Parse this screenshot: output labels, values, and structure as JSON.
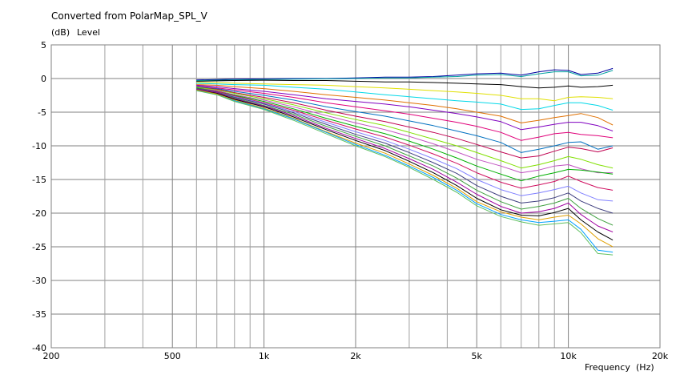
{
  "chart_data": {
    "type": "line",
    "title": "Converted from PolarMap_SPL_V",
    "ylabel_unit": "(dB)",
    "ylabel": "Level",
    "xlabel": "Frequency",
    "xlabel_unit": "(Hz)",
    "x_scale": "log",
    "xlim": [
      200,
      20000
    ],
    "ylim": [
      -40,
      5
    ],
    "grid": true,
    "legend": "none",
    "x_tick_labels": [
      {
        "value": 200,
        "label": "200"
      },
      {
        "value": 500,
        "label": "500"
      },
      {
        "value": 1000,
        "label": "1k"
      },
      {
        "value": 2000,
        "label": "2k"
      },
      {
        "value": 5000,
        "label": "5k"
      },
      {
        "value": 10000,
        "label": "10k"
      },
      {
        "value": 20000,
        "label": "20k"
      }
    ],
    "x_minor_grid": [
      300,
      400,
      600,
      700,
      800,
      900,
      3000,
      4000,
      6000,
      7000,
      8000,
      9000
    ],
    "y_ticks": [
      5,
      0,
      -5,
      -10,
      -15,
      -20,
      -25,
      -30,
      -35,
      -40
    ],
    "x": [
      600,
      700,
      800,
      1000,
      1250,
      1600,
      2000,
      2500,
      3000,
      3600,
      4300,
      5000,
      6000,
      7000,
      8000,
      9000,
      10000,
      11000,
      12500,
      14000
    ],
    "series": [
      {
        "color": "#0000a0",
        "values": [
          -0.2,
          -0.15,
          -0.1,
          -0.05,
          0.0,
          0.0,
          0.1,
          0.2,
          0.2,
          0.3,
          0.5,
          0.7,
          0.8,
          0.5,
          1.0,
          1.3,
          1.2,
          0.6,
          0.8,
          1.5
        ]
      },
      {
        "color": "#00a0a0",
        "values": [
          -0.3,
          -0.25,
          -0.2,
          -0.15,
          -0.1,
          -0.05,
          0.0,
          0.1,
          0.1,
          0.2,
          0.3,
          0.5,
          0.6,
          0.3,
          0.7,
          1.0,
          1.0,
          0.4,
          0.5,
          1.2
        ]
      },
      {
        "color": "#000000",
        "values": [
          -0.4,
          -0.35,
          -0.3,
          -0.25,
          -0.3,
          -0.3,
          -0.4,
          -0.5,
          -0.5,
          -0.6,
          -0.7,
          -0.8,
          -0.9,
          -1.2,
          -1.4,
          -1.3,
          -1.1,
          -1.3,
          -1.2,
          -1.0
        ]
      },
      {
        "color": "#e0e000",
        "values": [
          -0.6,
          -0.6,
          -0.7,
          -0.8,
          -0.9,
          -1.0,
          -1.2,
          -1.4,
          -1.6,
          -1.8,
          -2.0,
          -2.2,
          -2.5,
          -3.0,
          -3.0,
          -3.3,
          -2.8,
          -2.7,
          -2.8,
          -3.0
        ]
      },
      {
        "color": "#00d8e8",
        "values": [
          -0.7,
          -0.8,
          -0.9,
          -1.0,
          -1.3,
          -1.6,
          -2.0,
          -2.4,
          -2.7,
          -3.0,
          -3.3,
          -3.5,
          -3.8,
          -4.6,
          -4.5,
          -4.0,
          -3.6,
          -3.6,
          -4.0,
          -4.7
        ]
      },
      {
        "color": "#e07000",
        "values": [
          -0.9,
          -1.0,
          -1.2,
          -1.5,
          -1.9,
          -2.4,
          -2.8,
          -3.2,
          -3.6,
          -4.0,
          -4.5,
          -5.0,
          -5.6,
          -6.6,
          -6.2,
          -5.8,
          -5.5,
          -5.2,
          -5.8,
          -6.9
        ]
      },
      {
        "color": "#8000c0",
        "values": [
          -1.0,
          -1.2,
          -1.5,
          -1.9,
          -2.4,
          -3.0,
          -3.4,
          -3.8,
          -4.2,
          -4.7,
          -5.2,
          -5.7,
          -6.4,
          -7.6,
          -7.2,
          -6.8,
          -6.5,
          -6.5,
          -7.0,
          -7.8
        ]
      },
      {
        "color": "#e0007a",
        "values": [
          -1.1,
          -1.4,
          -1.7,
          -2.2,
          -2.8,
          -3.6,
          -4.2,
          -4.8,
          -5.3,
          -5.9,
          -6.5,
          -7.1,
          -8.0,
          -9.2,
          -8.7,
          -8.2,
          -8.0,
          -8.3,
          -8.5,
          -8.8
        ]
      },
      {
        "color": "#0070c0",
        "values": [
          -1.2,
          -1.5,
          -1.9,
          -2.5,
          -3.2,
          -4.2,
          -4.9,
          -5.6,
          -6.3,
          -7.0,
          -7.8,
          -8.5,
          -9.5,
          -11.0,
          -10.5,
          -10.0,
          -9.5,
          -9.4,
          -10.5,
          -10.0
        ]
      },
      {
        "color": "#c00050",
        "values": [
          -1.3,
          -1.6,
          -2.1,
          -2.8,
          -3.6,
          -4.7,
          -5.6,
          -6.4,
          -7.2,
          -8.0,
          -8.9,
          -9.8,
          -10.9,
          -11.8,
          -11.5,
          -10.8,
          -10.2,
          -10.4,
          -10.9,
          -10.3
        ]
      },
      {
        "color": "#80e000",
        "values": [
          -1.3,
          -1.7,
          -2.2,
          -3.0,
          -3.9,
          -5.1,
          -6.1,
          -7.0,
          -8.0,
          -9.0,
          -10.0,
          -11.0,
          -12.2,
          -13.3,
          -12.8,
          -12.2,
          -11.6,
          -12.0,
          -12.8,
          -13.3
        ]
      },
      {
        "color": "#c050c0",
        "values": [
          -1.4,
          -1.8,
          -2.4,
          -3.2,
          -4.2,
          -5.5,
          -6.6,
          -7.6,
          -8.6,
          -9.7,
          -10.9,
          -12.0,
          -13.0,
          -14.0,
          -13.6,
          -13.0,
          -12.8,
          -13.4,
          -14.0,
          -14.0
        ]
      },
      {
        "color": "#00b000",
        "values": [
          -1.4,
          -1.9,
          -2.5,
          -3.4,
          -4.5,
          -5.9,
          -7.1,
          -8.2,
          -9.3,
          -10.5,
          -11.8,
          -13.0,
          -14.2,
          -15.2,
          -14.5,
          -14.0,
          -13.5,
          -13.6,
          -13.9,
          -14.2
        ]
      },
      {
        "color": "#d01060",
        "values": [
          -1.5,
          -1.9,
          -2.6,
          -3.6,
          -4.7,
          -6.2,
          -7.5,
          -8.7,
          -9.9,
          -11.2,
          -12.6,
          -14.0,
          -15.4,
          -16.3,
          -15.8,
          -15.3,
          -14.5,
          -15.3,
          -16.2,
          -16.6
        ]
      },
      {
        "color": "#8080ff",
        "values": [
          -1.5,
          -2.0,
          -2.7,
          -3.7,
          -4.9,
          -6.5,
          -7.9,
          -9.2,
          -10.5,
          -11.9,
          -13.4,
          -15.0,
          -16.5,
          -17.4,
          -17.0,
          -16.5,
          -16.0,
          -17.0,
          -18.0,
          -18.2
        ]
      },
      {
        "color": "#404080",
        "values": [
          -1.5,
          -2.0,
          -2.8,
          -3.8,
          -5.1,
          -6.8,
          -8.3,
          -9.6,
          -11.0,
          -12.5,
          -14.1,
          -15.9,
          -17.5,
          -18.5,
          -18.2,
          -17.7,
          -17.0,
          -18.2,
          -19.3,
          -20.0
        ]
      },
      {
        "color": "#40a040",
        "values": [
          -1.6,
          -2.1,
          -2.9,
          -4.0,
          -5.3,
          -7.1,
          -8.6,
          -10.0,
          -11.5,
          -13.0,
          -14.8,
          -16.6,
          -18.3,
          -19.4,
          -19.0,
          -18.5,
          -17.8,
          -19.3,
          -20.8,
          -21.8
        ]
      },
      {
        "color": "#a000a0",
        "values": [
          -1.6,
          -2.1,
          -3.0,
          -4.1,
          -5.5,
          -7.4,
          -8.9,
          -10.4,
          -11.9,
          -13.5,
          -15.4,
          -17.2,
          -19.0,
          -20.0,
          -19.8,
          -19.3,
          -18.5,
          -20.2,
          -21.9,
          -22.8
        ]
      },
      {
        "color": "#000000",
        "values": [
          -1.7,
          -2.2,
          -3.1,
          -4.2,
          -5.7,
          -7.6,
          -9.2,
          -10.7,
          -12.3,
          -14.0,
          -15.9,
          -17.8,
          -19.5,
          -20.3,
          -20.4,
          -19.9,
          -19.3,
          -21.0,
          -22.8,
          -24.0
        ]
      },
      {
        "color": "#e0a000",
        "values": [
          -1.7,
          -2.3,
          -3.2,
          -4.4,
          -5.9,
          -7.9,
          -9.6,
          -11.1,
          -12.7,
          -14.4,
          -16.3,
          -18.3,
          -19.8,
          -20.6,
          -21.0,
          -20.6,
          -20.3,
          -21.6,
          -23.8,
          -25.0
        ]
      },
      {
        "color": "#00a0ff",
        "values": [
          -1.8,
          -2.4,
          -3.3,
          -4.5,
          -6.0,
          -8.0,
          -9.8,
          -11.4,
          -13.0,
          -14.7,
          -16.6,
          -18.6,
          -20.2,
          -21.0,
          -21.4,
          -21.2,
          -21.0,
          -22.4,
          -25.5,
          -25.8
        ]
      },
      {
        "color": "#60c060",
        "values": [
          -1.8,
          -2.4,
          -3.4,
          -4.6,
          -6.2,
          -8.2,
          -10.0,
          -11.6,
          -13.2,
          -15.0,
          -16.9,
          -18.9,
          -20.5,
          -21.3,
          -21.8,
          -21.6,
          -21.4,
          -22.9,
          -26.0,
          -26.2
        ]
      }
    ]
  }
}
